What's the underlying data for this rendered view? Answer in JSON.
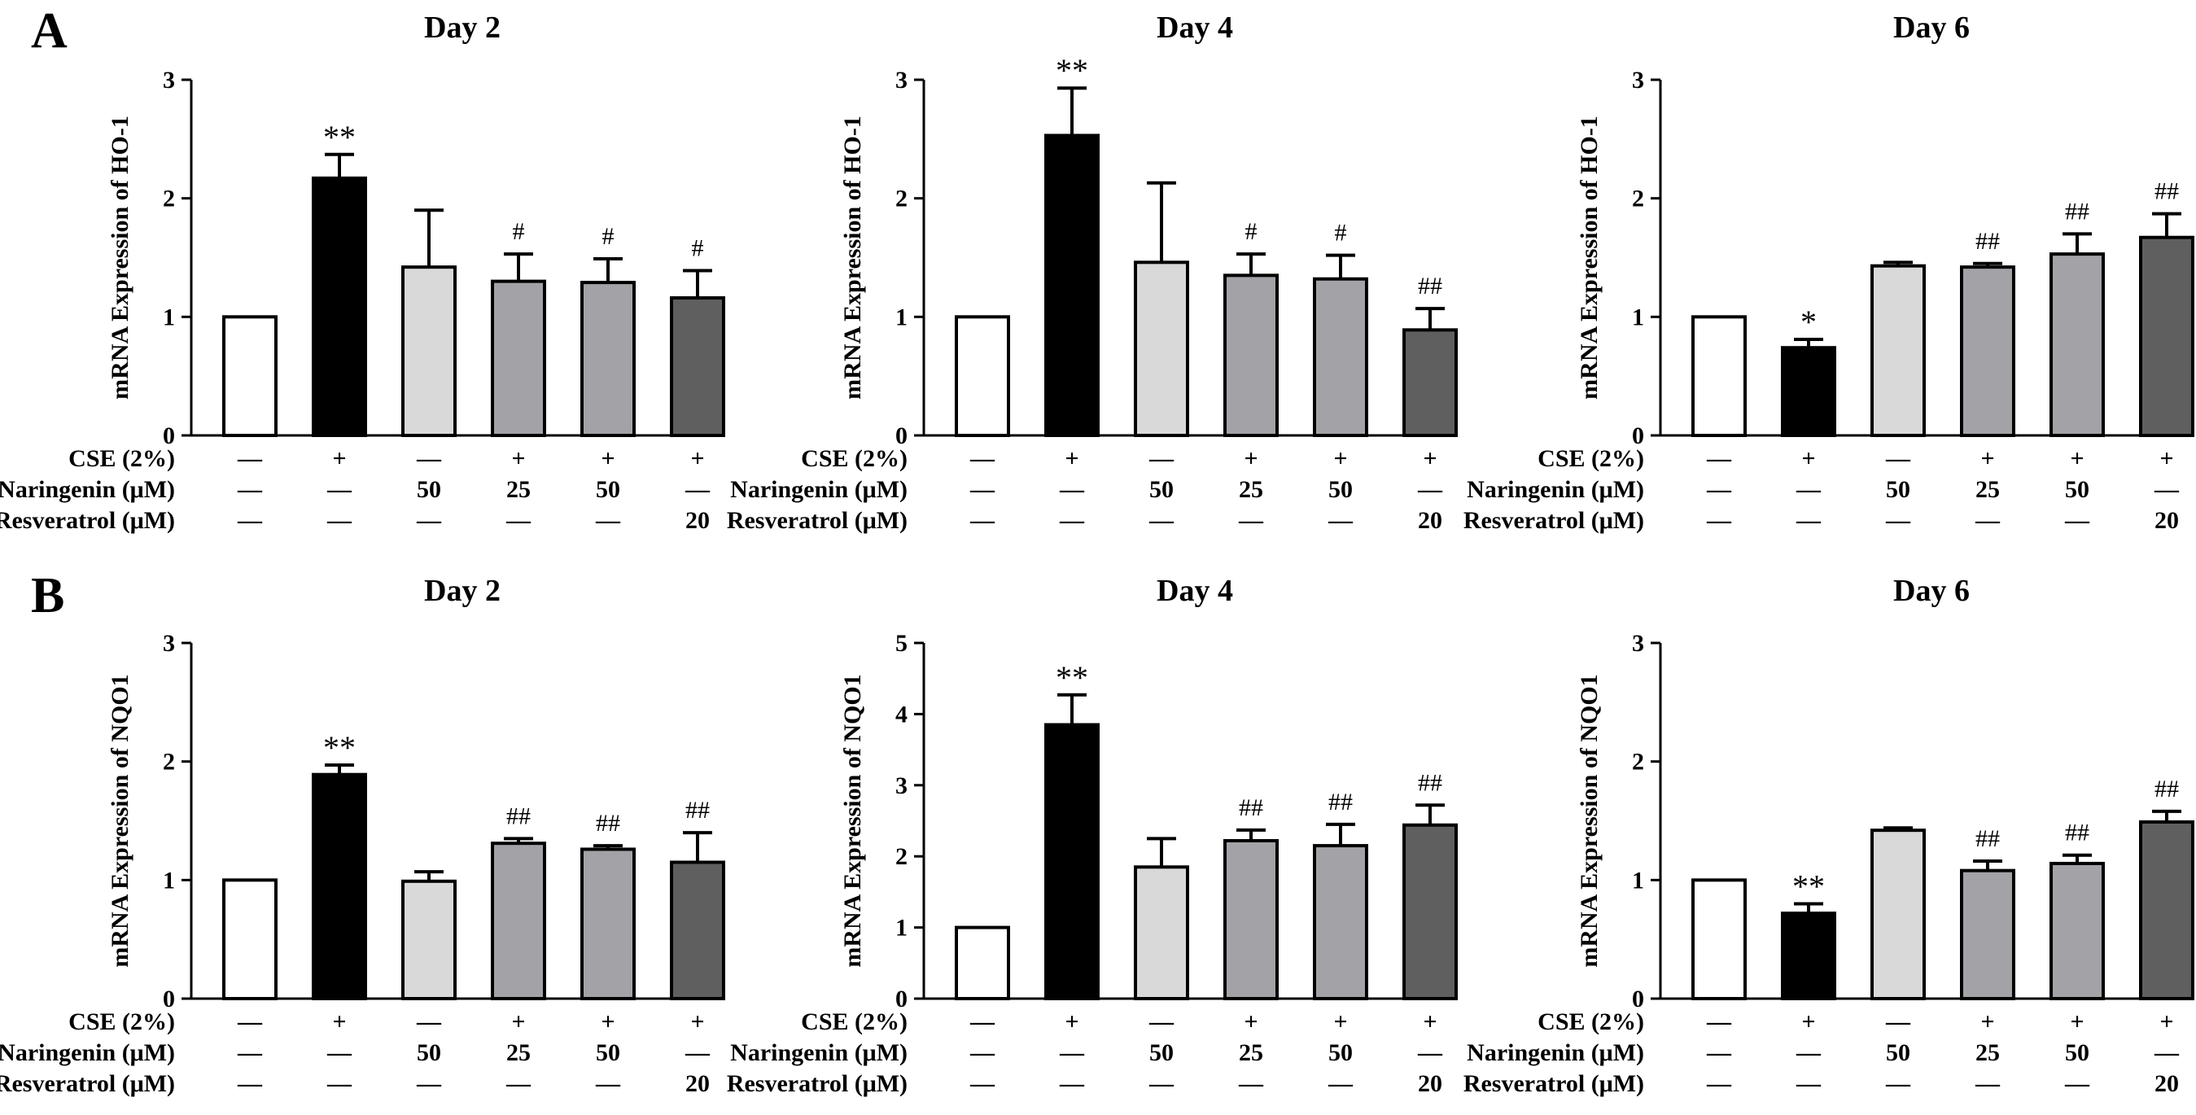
{
  "panels": [
    {
      "letter": "A"
    },
    {
      "letter": "B"
    }
  ],
  "condition_rows": [
    {
      "label": "CSE (2%)",
      "values": [
        "—",
        "+",
        "—",
        "+",
        "+",
        "+"
      ]
    },
    {
      "label": "Naringenin (μM)",
      "values": [
        "—",
        "—",
        "50",
        "25",
        "50",
        "—"
      ]
    },
    {
      "label": "Resveratrol (μM)",
      "values": [
        "—",
        "—",
        "—",
        "—",
        "—",
        "20"
      ]
    }
  ],
  "colors": {
    "bars": [
      "#ffffff",
      "#000000",
      "#d9d9d9",
      "#a3a2a7",
      "#a3a2a7",
      "#5f5f5f"
    ],
    "stroke": "#000000"
  },
  "chart_data": [
    {
      "type": "bar",
      "panel": "A",
      "title": "Day 2",
      "ylabel": "mRNA Expression of HO-1",
      "ylim": [
        0,
        3
      ],
      "yticks": [
        0,
        1,
        2,
        3
      ],
      "values": [
        1.0,
        2.17,
        1.42,
        1.3,
        1.29,
        1.16
      ],
      "errors": [
        0,
        0.2,
        0.48,
        0.23,
        0.2,
        0.23
      ],
      "significance": [
        "",
        "**",
        "",
        "#",
        "#",
        "#"
      ]
    },
    {
      "type": "bar",
      "panel": "A",
      "title": "Day 4",
      "ylabel": "mRNA Expression of HO-1",
      "ylim": [
        0,
        3
      ],
      "yticks": [
        0,
        1,
        2,
        3
      ],
      "values": [
        1.0,
        2.53,
        1.46,
        1.35,
        1.32,
        0.89
      ],
      "errors": [
        0,
        0.4,
        0.67,
        0.18,
        0.2,
        0.18
      ],
      "significance": [
        "",
        "**",
        "",
        "#",
        "#",
        "##"
      ]
    },
    {
      "type": "bar",
      "panel": "A",
      "title": "Day 6",
      "ylabel": "mRNA Expression of HO-1",
      "ylim": [
        0,
        3
      ],
      "yticks": [
        0,
        1,
        2,
        3
      ],
      "values": [
        1.0,
        0.74,
        1.43,
        1.42,
        1.53,
        1.67
      ],
      "errors": [
        0,
        0.07,
        0.03,
        0.03,
        0.17,
        0.2
      ],
      "significance": [
        "",
        "*",
        "",
        "##",
        "##",
        "##"
      ]
    },
    {
      "type": "bar",
      "panel": "B",
      "title": "Day 2",
      "ylabel": "mRNA Expression of NQO1",
      "ylim": [
        0,
        3
      ],
      "yticks": [
        0,
        1,
        2,
        3
      ],
      "values": [
        1.0,
        1.89,
        0.99,
        1.31,
        1.26,
        1.15
      ],
      "errors": [
        0,
        0.08,
        0.08,
        0.04,
        0.03,
        0.25
      ],
      "significance": [
        "",
        "**",
        "",
        "##",
        "##",
        "##"
      ]
    },
    {
      "type": "bar",
      "panel": "B",
      "title": "Day 4",
      "ylabel": "mRNA Expression of NQO1",
      "ylim": [
        0,
        5
      ],
      "yticks": [
        0,
        1,
        2,
        3,
        4,
        5
      ],
      "values": [
        1.0,
        3.85,
        1.85,
        2.22,
        2.15,
        2.44
      ],
      "errors": [
        0,
        0.42,
        0.4,
        0.15,
        0.3,
        0.28
      ],
      "significance": [
        "",
        "**",
        "",
        "##",
        "##",
        "##"
      ]
    },
    {
      "type": "bar",
      "panel": "B",
      "title": "Day 6",
      "ylabel": "mRNA Expression of NQO1",
      "ylim": [
        0,
        3
      ],
      "yticks": [
        0,
        1,
        2,
        3
      ],
      "values": [
        1.0,
        0.72,
        1.42,
        1.08,
        1.14,
        1.49
      ],
      "errors": [
        0,
        0.08,
        0.02,
        0.08,
        0.07,
        0.09
      ],
      "significance": [
        "",
        "**",
        "",
        "##",
        "##",
        "##"
      ]
    }
  ]
}
